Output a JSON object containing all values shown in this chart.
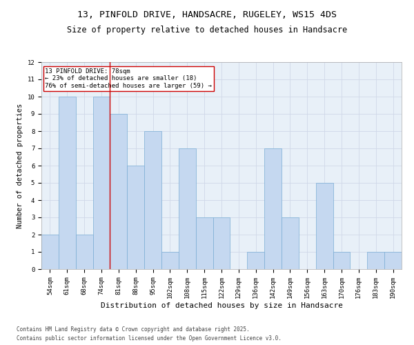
{
  "title1": "13, PINFOLD DRIVE, HANDSACRE, RUGELEY, WS15 4DS",
  "title2": "Size of property relative to detached houses in Handsacre",
  "xlabel": "Distribution of detached houses by size in Handsacre",
  "ylabel": "Number of detached properties",
  "categories": [
    "54sqm",
    "61sqm",
    "68sqm",
    "74sqm",
    "81sqm",
    "88sqm",
    "95sqm",
    "102sqm",
    "108sqm",
    "115sqm",
    "122sqm",
    "129sqm",
    "136sqm",
    "142sqm",
    "149sqm",
    "156sqm",
    "163sqm",
    "170sqm",
    "176sqm",
    "183sqm",
    "190sqm"
  ],
  "values": [
    2,
    10,
    2,
    10,
    9,
    6,
    8,
    1,
    7,
    3,
    3,
    0,
    1,
    7,
    3,
    0,
    5,
    1,
    0,
    1,
    1
  ],
  "bar_color": "#C5D8F0",
  "bar_edge_color": "#7AADD4",
  "vline_x": 3.5,
  "vline_color": "#CC0000",
  "annotation_text": "13 PINFOLD DRIVE: 78sqm\n← 23% of detached houses are smaller (18)\n76% of semi-detached houses are larger (59) →",
  "annotation_box_color": "#ffffff",
  "annotation_box_edge": "#CC0000",
  "ylim": [
    0,
    12
  ],
  "yticks": [
    0,
    1,
    2,
    3,
    4,
    5,
    6,
    7,
    8,
    9,
    10,
    11,
    12
  ],
  "grid_color": "#d0d8e8",
  "bg_color": "#e8f0f8",
  "footer1": "Contains HM Land Registry data © Crown copyright and database right 2025.",
  "footer2": "Contains public sector information licensed under the Open Government Licence v3.0.",
  "title1_fontsize": 9.5,
  "title2_fontsize": 8.5,
  "annotation_fontsize": 6.5,
  "tick_fontsize": 6.5,
  "xlabel_fontsize": 8,
  "ylabel_fontsize": 7.5,
  "footer_fontsize": 5.5
}
